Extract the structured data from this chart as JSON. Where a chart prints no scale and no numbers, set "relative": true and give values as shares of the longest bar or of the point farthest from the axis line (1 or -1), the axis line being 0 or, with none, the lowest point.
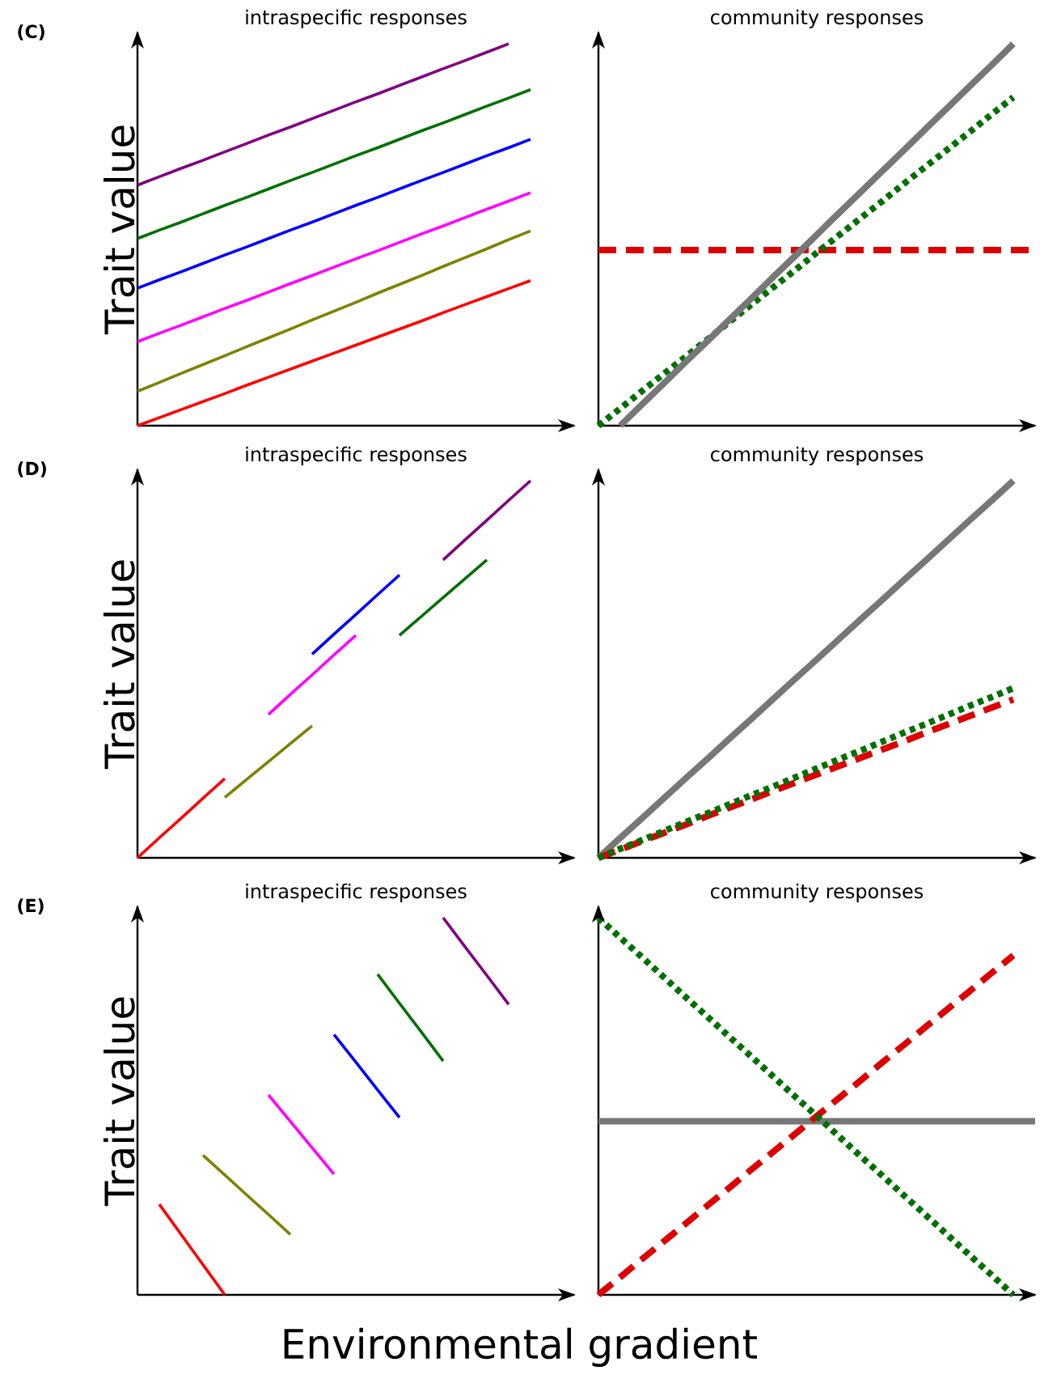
{
  "chart_data": [
    {
      "type": "line",
      "relative": true,
      "tick_labels": false,
      "title": "intraspecific responses",
      "ylabel": "Trait value",
      "annotations": [
        "(C)"
      ],
      "categories": [
        null,
        null,
        null,
        null,
        null,
        null,
        null,
        null,
        null,
        null,
        null,
        null,
        null,
        null,
        null,
        null,
        null,
        null,
        null,
        null,
        null
      ],
      "series": [
        {
          "color": "#800080",
          "values": [
            0.63,
            0.652,
            0.674,
            0.695,
            0.717,
            0.739,
            0.761,
            0.782,
            0.804,
            0.826,
            0.848,
            0.869,
            0.891,
            0.913,
            0.935,
            0.956,
            0.978,
            1.0,
            null,
            null,
            null
          ]
        },
        {
          "color": "#007000",
          "values": [
            0.49,
            0.512,
            0.533,
            0.555,
            0.577,
            0.598,
            0.62,
            0.642,
            0.663,
            0.685,
            0.707,
            0.728,
            0.75,
            0.772,
            0.793,
            0.815,
            0.837,
            0.858,
            0.88,
            null,
            null
          ]
        },
        {
          "color": "#0000ff",
          "values": [
            0.36,
            0.382,
            0.403,
            0.425,
            0.447,
            0.468,
            0.49,
            0.512,
            0.533,
            0.555,
            0.577,
            0.598,
            0.62,
            0.642,
            0.663,
            0.685,
            0.707,
            0.728,
            0.75,
            null,
            null
          ]
        },
        {
          "color": "#ff00ff",
          "values": [
            0.22,
            0.242,
            0.263,
            0.285,
            0.307,
            0.328,
            0.35,
            0.372,
            0.393,
            0.415,
            0.437,
            0.458,
            0.48,
            0.502,
            0.523,
            0.545,
            0.567,
            0.588,
            0.61,
            null,
            null
          ]
        },
        {
          "color": "#808000",
          "values": [
            0.09,
            0.113,
            0.137,
            0.16,
            0.183,
            0.207,
            0.23,
            0.253,
            0.277,
            0.3,
            0.323,
            0.347,
            0.37,
            0.393,
            0.417,
            0.44,
            0.463,
            0.487,
            0.51,
            null,
            null
          ]
        },
        {
          "color": "#ff0000",
          "values": [
            0.0,
            0.021,
            0.042,
            0.063,
            0.084,
            0.106,
            0.127,
            0.148,
            0.169,
            0.19,
            0.211,
            0.232,
            0.253,
            0.274,
            0.296,
            0.317,
            0.338,
            0.359,
            0.38,
            null,
            null
          ]
        }
      ]
    },
    {
      "type": "line",
      "relative": true,
      "tick_labels": false,
      "title": "community responses",
      "categories": [
        null,
        null,
        null,
        null,
        null,
        null,
        null,
        null,
        null,
        null,
        null,
        null,
        null,
        null,
        null,
        null,
        null,
        null,
        null,
        null,
        null
      ],
      "series": [
        {
          "color": "#dd0000",
          "line_style": "dashed",
          "values": [
            0.46,
            0.46,
            0.46,
            0.46,
            0.46,
            0.46,
            0.46,
            0.46,
            0.46,
            0.46,
            0.46,
            0.46,
            0.46,
            0.46,
            0.46,
            0.46,
            0.46,
            0.46,
            0.46,
            0.46,
            0.46
          ]
        },
        {
          "color": "#007000",
          "line_style": "dotted",
          "values": [
            0.0,
            0.045,
            0.091,
            0.136,
            0.181,
            0.226,
            0.272,
            0.317,
            0.362,
            0.407,
            0.453,
            0.498,
            0.543,
            0.588,
            0.634,
            0.679,
            0.724,
            0.769,
            0.815,
            0.86,
            null
          ]
        },
        {
          "color": "#777777",
          "line_style": "solid",
          "values": [
            null,
            0.0,
            0.056,
            0.111,
            0.167,
            0.222,
            0.278,
            0.333,
            0.389,
            0.444,
            0.5,
            0.556,
            0.611,
            0.667,
            0.722,
            0.778,
            0.833,
            0.889,
            0.944,
            1.0,
            null
          ]
        }
      ]
    },
    {
      "type": "line",
      "relative": true,
      "tick_labels": false,
      "title": "intraspecific responses",
      "ylabel": "Trait value",
      "annotations": [
        "(D)"
      ],
      "categories": [
        null,
        null,
        null,
        null,
        null,
        null,
        null,
        null,
        null,
        null,
        null,
        null,
        null,
        null,
        null,
        null,
        null,
        null,
        null,
        null,
        null
      ],
      "series": [
        {
          "color": "#ff0000",
          "values": [
            0.0,
            0.053,
            0.105,
            0.158,
            0.21,
            null,
            null,
            null,
            null,
            null,
            null,
            null,
            null,
            null,
            null,
            null,
            null,
            null,
            null,
            null,
            null
          ]
        },
        {
          "color": "#808000",
          "values": [
            null,
            null,
            null,
            null,
            0.16,
            0.208,
            0.255,
            0.303,
            0.35,
            null,
            null,
            null,
            null,
            null,
            null,
            null,
            null,
            null,
            null,
            null,
            null
          ]
        },
        {
          "color": "#ff00ff",
          "values": [
            null,
            null,
            null,
            null,
            null,
            null,
            0.38,
            0.433,
            0.485,
            0.538,
            0.59,
            null,
            null,
            null,
            null,
            null,
            null,
            null,
            null,
            null,
            null
          ]
        },
        {
          "color": "#0000ff",
          "values": [
            null,
            null,
            null,
            null,
            null,
            null,
            null,
            null,
            0.54,
            0.593,
            0.645,
            0.698,
            0.75,
            null,
            null,
            null,
            null,
            null,
            null,
            null,
            null
          ]
        },
        {
          "color": "#007000",
          "values": [
            null,
            null,
            null,
            null,
            null,
            null,
            null,
            null,
            null,
            null,
            null,
            null,
            0.59,
            0.64,
            0.69,
            0.74,
            0.79,
            null,
            null,
            null,
            null
          ]
        },
        {
          "color": "#800080",
          "values": [
            null,
            null,
            null,
            null,
            null,
            null,
            null,
            null,
            null,
            null,
            null,
            null,
            null,
            null,
            0.79,
            0.843,
            0.895,
            0.948,
            1.0,
            null,
            null
          ]
        }
      ]
    },
    {
      "type": "line",
      "relative": true,
      "tick_labels": false,
      "title": "community responses",
      "categories": [
        null,
        null,
        null,
        null,
        null,
        null,
        null,
        null,
        null,
        null,
        null,
        null,
        null,
        null,
        null,
        null,
        null,
        null,
        null,
        null,
        null
      ],
      "series": [
        {
          "color": "#777777",
          "line_style": "solid",
          "values": [
            0.0,
            0.053,
            0.105,
            0.158,
            0.211,
            0.263,
            0.316,
            0.368,
            0.421,
            0.474,
            0.526,
            0.579,
            0.632,
            0.684,
            0.737,
            0.789,
            0.842,
            0.895,
            0.947,
            1.0,
            null
          ]
        },
        {
          "color": "#dd0000",
          "line_style": "dashed",
          "values": [
            0.0,
            0.022,
            0.044,
            0.066,
            0.088,
            0.111,
            0.133,
            0.155,
            0.177,
            0.199,
            0.221,
            0.243,
            0.265,
            0.287,
            0.309,
            0.332,
            0.354,
            0.376,
            0.398,
            0.42,
            null
          ]
        },
        {
          "color": "#007000",
          "line_style": "dotted",
          "values": [
            0.0,
            0.024,
            0.047,
            0.071,
            0.095,
            0.118,
            0.142,
            0.166,
            0.189,
            0.213,
            0.237,
            0.261,
            0.284,
            0.308,
            0.332,
            0.355,
            0.379,
            0.403,
            0.426,
            0.45,
            null
          ]
        }
      ]
    },
    {
      "type": "line",
      "relative": true,
      "tick_labels": false,
      "title": "intraspecific responses",
      "ylabel": "Trait value",
      "xlabel": "Environmental gradient",
      "annotations": [
        "(E)"
      ],
      "categories": [
        null,
        null,
        null,
        null,
        null,
        null,
        null,
        null,
        null,
        null,
        null,
        null,
        null,
        null,
        null,
        null,
        null,
        null,
        null,
        null,
        null
      ],
      "series": [
        {
          "color": "#ff0000",
          "values": [
            null,
            0.24,
            0.16,
            0.08,
            0.0,
            null,
            null,
            null,
            null,
            null,
            null,
            null,
            null,
            null,
            null,
            null,
            null,
            null,
            null,
            null,
            null
          ]
        },
        {
          "color": "#808000",
          "values": [
            null,
            null,
            null,
            0.37,
            0.318,
            0.265,
            0.213,
            0.16,
            null,
            null,
            null,
            null,
            null,
            null,
            null,
            null,
            null,
            null,
            null,
            null,
            null
          ]
        },
        {
          "color": "#ff00ff",
          "values": [
            null,
            null,
            null,
            null,
            null,
            null,
            0.53,
            0.46,
            0.39,
            0.32,
            null,
            null,
            null,
            null,
            null,
            null,
            null,
            null,
            null,
            null,
            null
          ]
        },
        {
          "color": "#0000ff",
          "values": [
            null,
            null,
            null,
            null,
            null,
            null,
            null,
            null,
            null,
            0.69,
            0.617,
            0.543,
            0.47,
            null,
            null,
            null,
            null,
            null,
            null,
            null,
            null
          ]
        },
        {
          "color": "#007000",
          "values": [
            null,
            null,
            null,
            null,
            null,
            null,
            null,
            null,
            null,
            null,
            null,
            0.85,
            0.773,
            0.697,
            0.62,
            null,
            null,
            null,
            null,
            null,
            null
          ]
        },
        {
          "color": "#800080",
          "values": [
            null,
            null,
            null,
            null,
            null,
            null,
            null,
            null,
            null,
            null,
            null,
            null,
            null,
            null,
            1.0,
            0.923,
            0.847,
            0.77,
            null,
            null,
            null
          ]
        }
      ]
    },
    {
      "type": "line",
      "relative": true,
      "tick_labels": false,
      "title": "community responses",
      "categories": [
        null,
        null,
        null,
        null,
        null,
        null,
        null,
        null,
        null,
        null,
        null,
        null,
        null,
        null,
        null,
        null,
        null,
        null,
        null,
        null,
        null
      ],
      "series": [
        {
          "color": "#777777",
          "line_style": "solid",
          "values": [
            0.46,
            0.46,
            0.46,
            0.46,
            0.46,
            0.46,
            0.46,
            0.46,
            0.46,
            0.46,
            0.46,
            0.46,
            0.46,
            0.46,
            0.46,
            0.46,
            0.46,
            0.46,
            0.46,
            0.46,
            0.46
          ]
        },
        {
          "color": "#dd0000",
          "line_style": "dashed",
          "values": [
            0.0,
            0.047,
            0.095,
            0.142,
            0.189,
            0.237,
            0.284,
            0.332,
            0.379,
            0.426,
            0.474,
            0.521,
            0.568,
            0.616,
            0.663,
            0.711,
            0.758,
            0.805,
            0.853,
            0.9,
            null
          ]
        },
        {
          "color": "#007000",
          "line_style": "dotted",
          "values": [
            1.0,
            0.947,
            0.895,
            0.842,
            0.789,
            0.737,
            0.684,
            0.632,
            0.579,
            0.526,
            0.474,
            0.421,
            0.368,
            0.316,
            0.263,
            0.211,
            0.158,
            0.105,
            0.053,
            0.0,
            null
          ]
        }
      ]
    }
  ]
}
